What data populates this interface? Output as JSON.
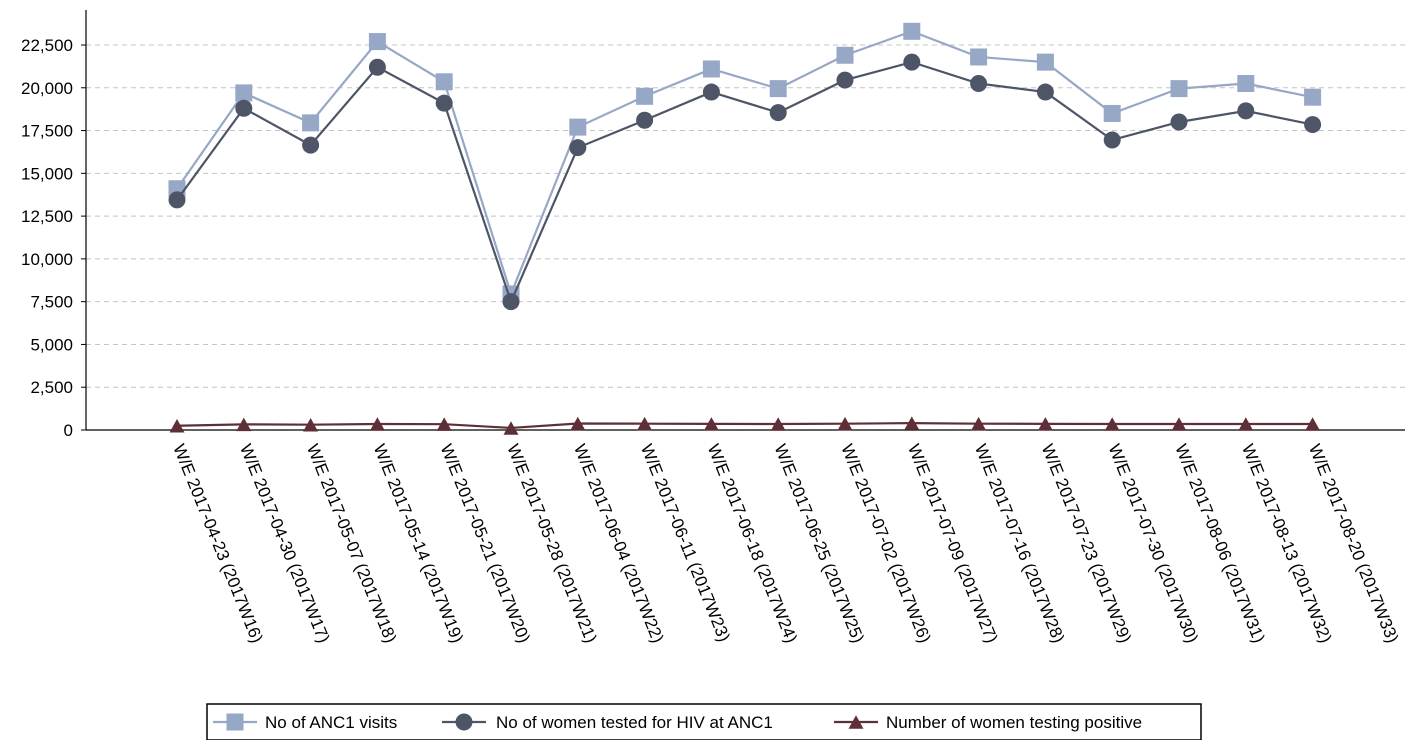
{
  "chart_data": {
    "type": "line",
    "title": "",
    "xlabel": "",
    "ylabel": "",
    "ylim": [
      0,
      23750
    ],
    "yticks": [
      0,
      2500,
      5000,
      7500,
      10000,
      12500,
      15000,
      17500,
      20000,
      22500
    ],
    "ytick_labels": [
      "0",
      "2,500",
      "5,000",
      "7,500",
      "10,000",
      "12,500",
      "15,000",
      "17,500",
      "20,000",
      "22,500"
    ],
    "grid": "horizontal dashed",
    "legend_position": "bottom",
    "categories": [
      "W/E 2017-04-23 (2017W16)",
      "W/E 2017-04-30 (2017W17)",
      "W/E 2017-05-07 (2017W18)",
      "W/E 2017-05-14 (2017W19)",
      "W/E 2017-05-21 (2017W20)",
      "W/E 2017-05-28 (2017W21)",
      "W/E 2017-06-04 (2017W22)",
      "W/E 2017-06-11 (2017W23)",
      "W/E 2017-06-18 (2017W24)",
      "W/E 2017-06-25 (2017W25)",
      "W/E 2017-07-02 (2017W26)",
      "W/E 2017-07-09 (2017W27)",
      "W/E 2017-07-16 (2017W28)",
      "W/E 2017-07-23 (2017W29)",
      "W/E 2017-07-30 (2017W30)",
      "W/E 2017-08-06 (2017W31)",
      "W/E 2017-08-13 (2017W32)",
      "W/E 2017-08-20 (2017W33)"
    ],
    "series": [
      {
        "name": "No of ANC1 visits",
        "color": "#97a7c6",
        "marker": "square",
        "values": [
          14100,
          19700,
          17950,
          22700,
          20350,
          7950,
          17700,
          19500,
          21100,
          19950,
          21900,
          23300,
          21800,
          21500,
          18500,
          19950,
          20250,
          19450
        ]
      },
      {
        "name": "No of women tested for HIV at ANC1",
        "color": "#4d5566",
        "marker": "circle",
        "values": [
          13450,
          18800,
          16650,
          21200,
          19100,
          7500,
          16500,
          18100,
          19750,
          18550,
          20450,
          21500,
          20250,
          19750,
          16950,
          18000,
          18650,
          17850
        ]
      },
      {
        "name": "Number of women testing positive",
        "color": "#5e2f37",
        "marker": "triangle",
        "values": [
          250,
          330,
          310,
          350,
          340,
          120,
          380,
          370,
          360,
          350,
          370,
          400,
          370,
          360,
          350,
          350,
          350,
          350
        ]
      }
    ]
  }
}
